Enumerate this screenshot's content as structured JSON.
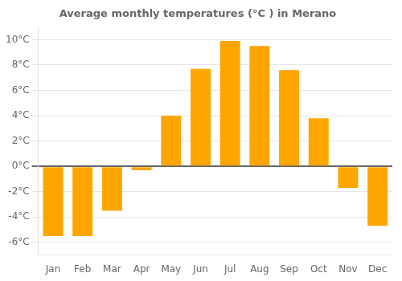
{
  "chart_data": {
    "type": "bar",
    "title": "Average monthly temperatures (°C ) in Merano",
    "categories": [
      "Jan",
      "Feb",
      "Mar",
      "Apr",
      "May",
      "Jun",
      "Jul",
      "Aug",
      "Sep",
      "Oct",
      "Nov",
      "Dec"
    ],
    "values": [
      -5.5,
      -5.5,
      -3.5,
      -0.3,
      4.0,
      7.7,
      9.9,
      9.5,
      7.6,
      3.8,
      -1.7,
      -4.7
    ],
    "color": "#FFA500",
    "ylim": [
      -7,
      11
    ],
    "yticks": [
      {
        "value": -6,
        "label": "-6°C"
      },
      {
        "value": -4,
        "label": "-4°C"
      },
      {
        "value": -2,
        "label": "-2°C"
      },
      {
        "value": 0,
        "label": "0°C"
      },
      {
        "value": 2,
        "label": "2°C"
      },
      {
        "value": 4,
        "label": "4°C"
      },
      {
        "value": 6,
        "label": "6°C"
      },
      {
        "value": 8,
        "label": "8°C"
      },
      {
        "value": 10,
        "label": "10°C"
      }
    ],
    "grid": true
  }
}
